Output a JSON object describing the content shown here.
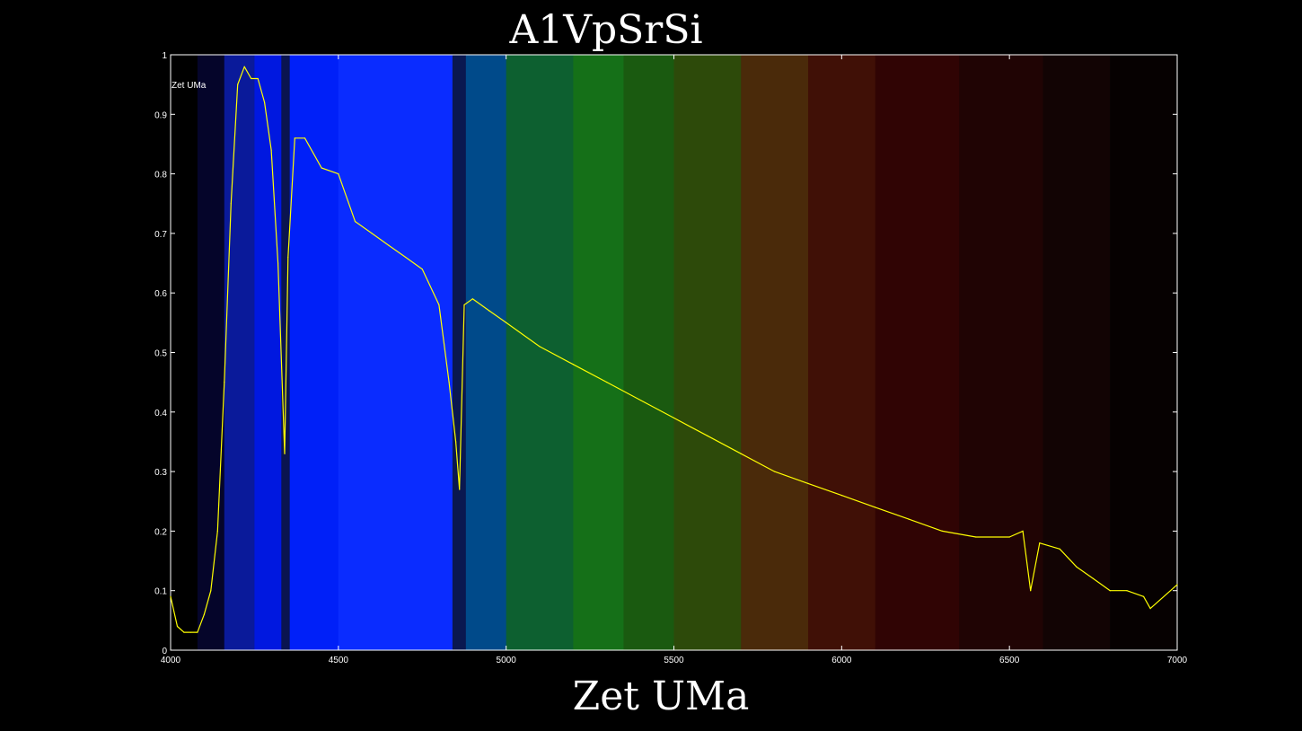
{
  "chart_data": {
    "type": "line",
    "title": "A1VpSrSi",
    "xlabel": "Zet UMa",
    "ylabel": "",
    "legend": {
      "entries": [
        "Zet UMa"
      ],
      "placement": "top-left"
    },
    "xlim": [
      4000,
      7000
    ],
    "ylim": [
      0,
      1
    ],
    "grid": false,
    "xticks": [
      4000,
      4500,
      5000,
      5500,
      6000,
      6500,
      7000
    ],
    "xtick_labels": [
      "4000",
      "4500",
      "5000",
      "5500",
      "6000",
      "6500",
      "7000"
    ],
    "yticks": [
      0,
      0.1,
      0.2,
      0.3,
      0.4,
      0.5,
      0.6,
      0.7,
      0.8,
      0.9,
      1
    ],
    "ytick_labels": [
      "0",
      "0.1",
      "0.2",
      "0.3",
      "0.4",
      "0.5",
      "0.6",
      "0.7",
      "0.8",
      "0.9",
      "1"
    ],
    "series": [
      {
        "name": "Zet UMa",
        "color": "#ffff00",
        "x": [
          4000,
          4020,
          4040,
          4060,
          4080,
          4100,
          4120,
          4140,
          4160,
          4180,
          4200,
          4220,
          4240,
          4260,
          4280,
          4300,
          4320,
          4340,
          4350,
          4370,
          4400,
          4450,
          4500,
          4550,
          4600,
          4650,
          4700,
          4750,
          4800,
          4830,
          4850,
          4861,
          4875,
          4900,
          4950,
          5000,
          5100,
          5200,
          5300,
          5400,
          5500,
          5600,
          5700,
          5800,
          5900,
          6000,
          6100,
          6200,
          6300,
          6400,
          6500,
          6540,
          6563,
          6590,
          6650,
          6700,
          6750,
          6800,
          6850,
          6900,
          6920,
          7000
        ],
        "y": [
          0.09,
          0.04,
          0.03,
          0.03,
          0.03,
          0.06,
          0.1,
          0.2,
          0.45,
          0.75,
          0.95,
          0.98,
          0.96,
          0.96,
          0.92,
          0.84,
          0.65,
          0.33,
          0.66,
          0.86,
          0.86,
          0.81,
          0.8,
          0.72,
          0.7,
          0.68,
          0.66,
          0.64,
          0.58,
          0.45,
          0.35,
          0.27,
          0.58,
          0.59,
          0.57,
          0.55,
          0.51,
          0.48,
          0.45,
          0.42,
          0.39,
          0.36,
          0.33,
          0.3,
          0.28,
          0.26,
          0.24,
          0.22,
          0.2,
          0.19,
          0.19,
          0.2,
          0.1,
          0.18,
          0.17,
          0.14,
          0.12,
          0.1,
          0.1,
          0.09,
          0.07,
          0.11
        ]
      }
    ],
    "background_bands": [
      {
        "from": 4000,
        "to": 4080,
        "color": "#000000"
      },
      {
        "from": 4080,
        "to": 4160,
        "color": "#05052a"
      },
      {
        "from": 4160,
        "to": 4250,
        "color": "#0a1a9a"
      },
      {
        "from": 4250,
        "to": 4330,
        "color": "#0018e0"
      },
      {
        "from": 4330,
        "to": 4355,
        "color": "#0a1450"
      },
      {
        "from": 4355,
        "to": 4500,
        "color": "#0020f8"
      },
      {
        "from": 4500,
        "to": 4840,
        "color": "#0a2cff"
      },
      {
        "from": 4840,
        "to": 4880,
        "color": "#0a1850"
      },
      {
        "from": 4880,
        "to": 5000,
        "color": "#004a8a"
      },
      {
        "from": 5000,
        "to": 5200,
        "color": "#0d6030"
      },
      {
        "from": 5200,
        "to": 5350,
        "color": "#157018"
      },
      {
        "from": 5350,
        "to": 5500,
        "color": "#1a5a10"
      },
      {
        "from": 5500,
        "to": 5700,
        "color": "#2d4a0a"
      },
      {
        "from": 5700,
        "to": 5900,
        "color": "#4a2a0a"
      },
      {
        "from": 5900,
        "to": 6100,
        "color": "#401006"
      },
      {
        "from": 6100,
        "to": 6350,
        "color": "#300404"
      },
      {
        "from": 6350,
        "to": 6600,
        "color": "#200404"
      },
      {
        "from": 6600,
        "to": 6800,
        "color": "#120404"
      },
      {
        "from": 6800,
        "to": 7000,
        "color": "#060101"
      }
    ]
  }
}
